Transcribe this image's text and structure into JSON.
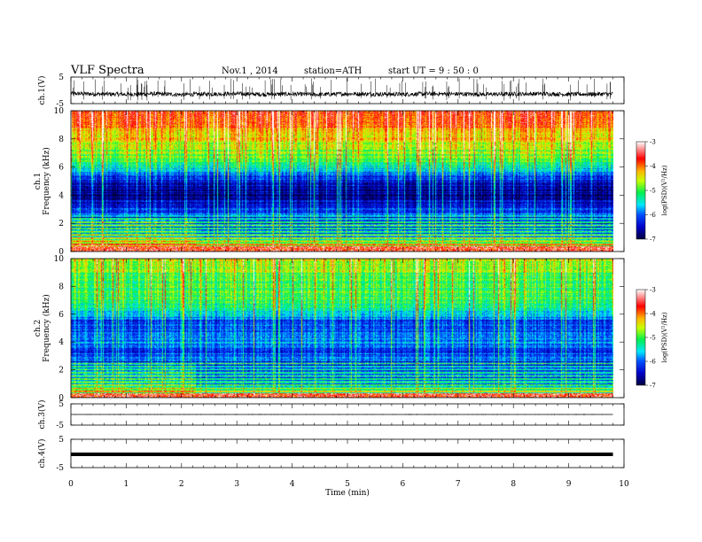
{
  "header": {
    "title": "VLF  Spectra",
    "date": "Nov.1 , 2014",
    "station": "station=ATH",
    "start": "start  UT  =   9 : 50 : 0"
  },
  "chart_data": [
    {
      "type": "line",
      "panel": "ch1-waveform",
      "ylabel": "ch.1(V)",
      "ylim": [
        -5,
        5
      ],
      "y_ticks": [
        "5",
        "-5"
      ],
      "x": [
        0,
        0.5,
        1,
        1.5,
        2,
        2.5,
        3,
        3.5,
        4,
        4.5,
        5,
        5.5,
        6,
        6.5,
        7,
        7.5,
        8,
        8.5,
        9,
        9.5,
        9.8
      ],
      "values": [
        -1.2,
        -1.4,
        -1.5,
        -1.3,
        -1.6,
        -1.4,
        -1.3,
        -1.5,
        -1.4,
        -1.6,
        -1.3,
        -1.4,
        -1.5,
        -1.3,
        -1.4,
        -1.5,
        -1.4,
        -1.3,
        -1.5,
        -1.4,
        -1.4
      ],
      "noise_amplitude_V": 0.8
    },
    {
      "type": "heatmap",
      "panel": "ch1-spectrogram",
      "ylabel": "ch.1\nFrequency (kHz)",
      "ylim": [
        0,
        10
      ],
      "y_ticks": [
        "0",
        "2",
        "4",
        "6",
        "8",
        "10"
      ],
      "colorbar": {
        "label": "log(PSD)(V²/Hz)",
        "range": [
          -7,
          -3
        ],
        "ticks": [
          "-3",
          "-4",
          "-5",
          "-6",
          "-7"
        ],
        "colors": [
          "#ffffff",
          "#ff0000",
          "#ffff00",
          "#00ff00",
          "#00ffff",
          "#0000ff",
          "#000040"
        ]
      },
      "freq_kHz": [
        0,
        0.5,
        1,
        1.5,
        2,
        2.5,
        3,
        3.5,
        4,
        4.5,
        5,
        5.5,
        6,
        6.5,
        7,
        7.5,
        8,
        8.5,
        9,
        9.5,
        10
      ],
      "mean_logPSD": [
        -4.6,
        -4.5,
        -5.4,
        -5.5,
        -5.7,
        -6.0,
        -6.2,
        -6.5,
        -6.7,
        -6.6,
        -6.4,
        -5.9,
        -5.4,
        -5.0,
        -4.8,
        -4.6,
        -4.4,
        -4.2,
        -4.0,
        -3.9,
        -3.9
      ]
    },
    {
      "type": "heatmap",
      "panel": "ch2-spectrogram",
      "ylabel": "ch.2\nFrequency (kHz)",
      "ylim": [
        0,
        10
      ],
      "y_ticks": [
        "0",
        "2",
        "4",
        "6",
        "8",
        "10"
      ],
      "colorbar": {
        "label": "log(PSD)(V²/Hz)",
        "range": [
          -7,
          -3
        ],
        "ticks": [
          "-3",
          "-4",
          "-5",
          "-6",
          "-7"
        ],
        "colors": [
          "#ffffff",
          "#ff0000",
          "#ffff00",
          "#00ff00",
          "#00ffff",
          "#0000ff",
          "#000040"
        ]
      },
      "freq_kHz": [
        0,
        0.5,
        1,
        1.5,
        2,
        2.5,
        3,
        3.5,
        4,
        4.5,
        5,
        5.5,
        6,
        6.5,
        7,
        7.5,
        8,
        8.5,
        9,
        9.5,
        10
      ],
      "mean_logPSD": [
        -4.8,
        -4.7,
        -5.6,
        -5.6,
        -5.7,
        -5.8,
        -6.0,
        -6.2,
        -5.8,
        -6.0,
        -5.9,
        -6.1,
        -5.6,
        -5.3,
        -5.1,
        -5.0,
        -5.0,
        -4.9,
        -4.8,
        -4.7,
        -4.6
      ]
    },
    {
      "type": "line",
      "panel": "ch3-waveform",
      "ylabel": "ch.3(V)",
      "ylim": [
        -5,
        5
      ],
      "y_ticks": [
        "5",
        "-5"
      ],
      "x": [
        0,
        9.8
      ],
      "values": [
        0,
        0
      ]
    },
    {
      "type": "line",
      "panel": "ch4-waveform",
      "ylabel": "ch.4(V)",
      "ylim": [
        -5,
        5
      ],
      "y_ticks": [
        "5",
        "-5"
      ],
      "x": [
        0,
        9.8
      ],
      "values": [
        -0.3,
        -0.3
      ]
    }
  ],
  "x_axis": {
    "label": "Time (min)",
    "ticks": [
      "0",
      "1",
      "2",
      "3",
      "4",
      "5",
      "6",
      "7",
      "8",
      "9",
      "10"
    ],
    "xlim": [
      0,
      10
    ],
    "data_end": 9.8
  }
}
